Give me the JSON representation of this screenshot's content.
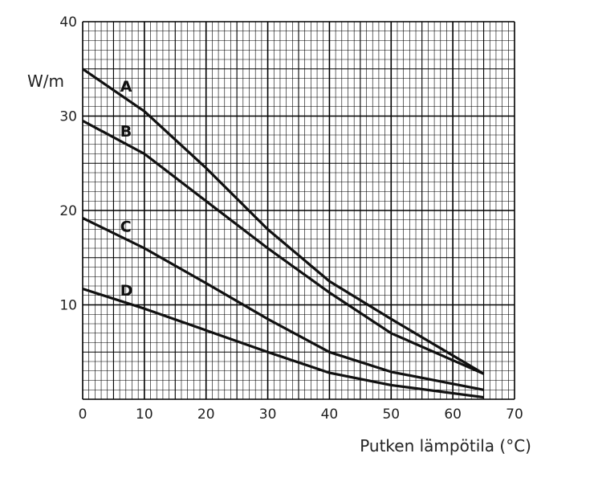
{
  "chart_data": {
    "type": "line",
    "title": "",
    "xlabel": "Putken lämpötila (°C)",
    "ylabel": "W/m",
    "xlim": [
      0,
      70
    ],
    "ylim": [
      0,
      40
    ],
    "x_ticks": [
      0,
      10,
      20,
      30,
      40,
      50,
      60,
      70
    ],
    "y_ticks": [
      10,
      20,
      30,
      40
    ],
    "grid": true,
    "grid_minor_step": 1,
    "line_color": "#111111",
    "grid_color": "#000000",
    "series": [
      {
        "name": "A",
        "x": [
          0,
          10,
          20,
          30,
          40,
          50,
          65
        ],
        "y": [
          35,
          30.5,
          24.5,
          18,
          12.5,
          8.5,
          2.7
        ]
      },
      {
        "name": "B",
        "x": [
          0,
          10,
          20,
          30,
          40,
          50,
          65
        ],
        "y": [
          29.5,
          26,
          21,
          16,
          11.3,
          7,
          2.7
        ]
      },
      {
        "name": "C",
        "x": [
          0,
          10,
          20,
          30,
          40,
          50,
          65
        ],
        "y": [
          19.2,
          16,
          12.3,
          8.5,
          5,
          2.9,
          1
        ]
      },
      {
        "name": "D",
        "x": [
          0,
          10,
          20,
          30,
          40,
          50,
          65
        ],
        "y": [
          11.7,
          9.6,
          7.3,
          5,
          2.8,
          1.5,
          0.2
        ]
      }
    ]
  }
}
